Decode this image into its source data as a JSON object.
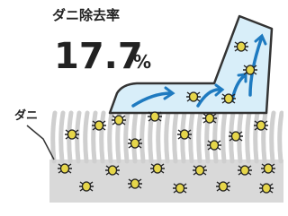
{
  "title": "ダニ除去率",
  "rate": {
    "number": 17.7,
    "unit": "%"
  },
  "label": "ダニ"
}
